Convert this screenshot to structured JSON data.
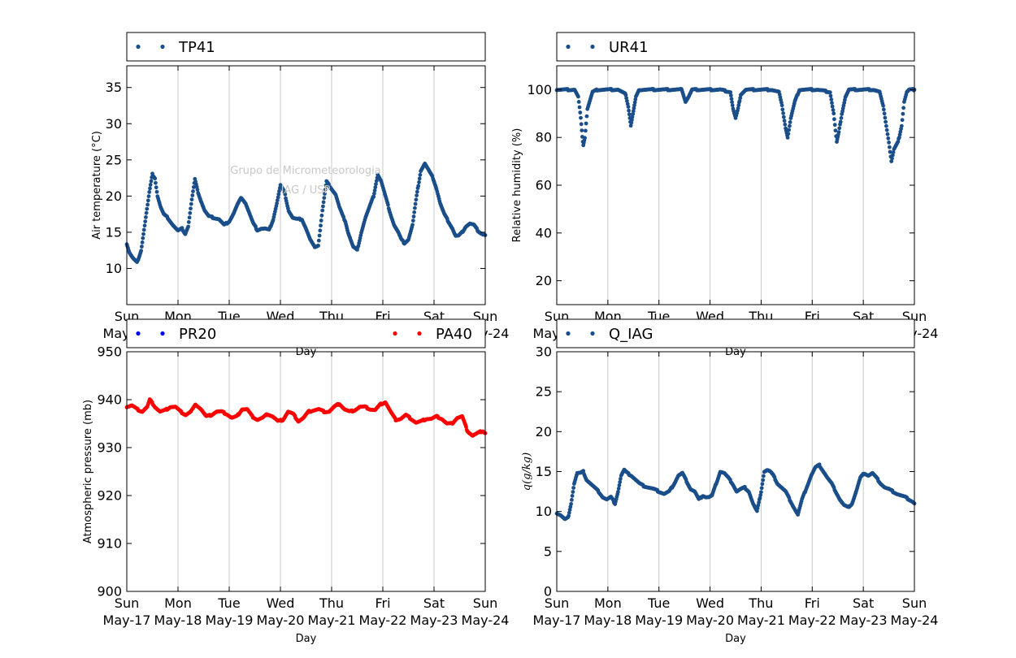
{
  "watermark": {
    "line1": "Grupo de Micrometeorologia",
    "line2": "IAG / USP"
  },
  "x_ticks": [
    {
      "day": "Sun",
      "date": "May-17"
    },
    {
      "day": "Mon",
      "date": "May-18"
    },
    {
      "day": "Tue",
      "date": "May-19"
    },
    {
      "day": "Wed",
      "date": "May-20"
    },
    {
      "day": "Thu",
      "date": "May-21"
    },
    {
      "day": "Fri",
      "date": "May-22"
    },
    {
      "day": "Sat",
      "date": "May-23"
    },
    {
      "day": "Sun",
      "date": "May-24"
    }
  ],
  "xlabel": "Day",
  "colors": {
    "dark_blue": "#1a4e8a",
    "blue": "#0000ff",
    "red": "#ff0000",
    "grid": "#c8c8c8"
  },
  "chart_data": [
    {
      "type": "scatter",
      "title": "",
      "xlabel": "Day",
      "ylabel": "Air temperature (°C)",
      "ylim": [
        5,
        38
      ],
      "yticks": [
        "10",
        "15",
        "20",
        "25",
        "30",
        "35"
      ],
      "xlim": [
        "2015-05-17",
        "2015-05-24"
      ],
      "legend": "top",
      "series": [
        {
          "name": "TP41",
          "color": "#1a4e8a",
          "x": [
            0,
            0.05,
            0.12,
            0.2,
            0.28,
            0.36,
            0.44,
            0.5,
            0.55,
            0.6,
            0.66,
            0.72,
            0.8,
            0.9,
            1.0,
            1.08,
            1.14,
            1.2,
            1.27,
            1.33,
            1.38,
            1.44,
            1.52,
            1.6,
            1.7,
            1.8,
            1.9,
            2.0,
            2.08,
            2.16,
            2.24,
            2.32,
            2.4,
            2.47,
            2.55,
            2.62,
            2.7,
            2.78,
            2.86,
            2.93,
            3.0,
            3.08,
            3.16,
            3.24,
            3.32,
            3.42,
            3.5,
            3.58,
            3.66,
            3.74,
            3.82,
            3.9,
            4.0,
            4.08,
            4.15,
            4.22,
            4.27,
            4.32,
            4.36,
            4.42,
            4.5,
            4.58,
            4.66,
            4.74,
            4.82,
            4.9,
            4.97,
            5.03,
            5.09,
            5.15,
            5.22,
            5.3,
            5.36,
            5.42,
            5.5,
            5.58,
            5.66,
            5.74,
            5.82,
            5.9,
            5.98,
            6.05,
            6.12,
            6.2,
            6.28,
            6.36,
            6.42,
            6.48,
            6.55,
            6.62,
            6.7,
            6.78,
            6.86,
            6.93,
            7.0
          ],
          "y": [
            13.4,
            12.2,
            11.4,
            10.8,
            12.5,
            16.5,
            20.5,
            23.0,
            22.5,
            20.0,
            18.5,
            17.5,
            17.0,
            16.0,
            15.2,
            15.5,
            14.8,
            15.8,
            19.5,
            22.3,
            20.8,
            19.5,
            18.0,
            17.2,
            17.0,
            16.8,
            16.0,
            16.5,
            17.5,
            18.8,
            19.8,
            19.0,
            17.5,
            16.2,
            15.3,
            15.5,
            15.5,
            15.3,
            16.8,
            19.0,
            21.5,
            20.5,
            18.0,
            17.0,
            16.8,
            16.8,
            15.5,
            14.0,
            13.0,
            13.2,
            18.0,
            22.0,
            21.0,
            20.2,
            18.5,
            17.2,
            16.5,
            15.0,
            14.2,
            13.0,
            12.5,
            15.0,
            17.0,
            18.5,
            20.0,
            23.0,
            22.0,
            20.5,
            19.0,
            17.5,
            16.0,
            15.0,
            14.0,
            13.5,
            14.0,
            16.0,
            20.0,
            23.5,
            24.5,
            23.5,
            22.5,
            21.0,
            19.0,
            17.5,
            16.5,
            15.5,
            14.5,
            14.5,
            15.0,
            15.8,
            16.2,
            16.0,
            15.2,
            14.8,
            14.6
          ]
        }
      ]
    },
    {
      "type": "scatter",
      "title": "",
      "xlabel": "Day",
      "ylabel": "Relative humidity (%)",
      "ylim": [
        10,
        110
      ],
      "yticks": [
        "20",
        "40",
        "60",
        "80",
        "100"
      ],
      "xlim": [
        "2015-05-17",
        "2015-05-24"
      ],
      "legend": "top",
      "series": [
        {
          "name": "UR41",
          "color": "#1a4e8a",
          "x": [
            0,
            0.2,
            0.35,
            0.42,
            0.47,
            0.5,
            0.52,
            0.55,
            0.6,
            0.7,
            0.8,
            1.0,
            1.2,
            1.35,
            1.4,
            1.45,
            1.5,
            1.55,
            1.62,
            1.8,
            2.2,
            2.45,
            2.52,
            2.58,
            2.65,
            2.8,
            3.2,
            3.4,
            3.45,
            3.5,
            3.55,
            3.6,
            3.7,
            4.2,
            4.35,
            4.42,
            4.48,
            4.52,
            4.58,
            4.66,
            4.75,
            5.1,
            5.35,
            5.42,
            5.48,
            5.52,
            5.58,
            5.65,
            5.72,
            5.8,
            6.2,
            6.32,
            6.4,
            6.45,
            6.5,
            6.55,
            6.6,
            6.68,
            6.75,
            6.8,
            6.85,
            6.9,
            7.0
          ],
          "y": [
            100,
            100,
            100,
            97,
            88,
            80,
            77,
            80,
            92,
            99,
            100,
            100,
            100,
            98,
            93,
            85,
            91,
            97,
            100,
            100,
            100,
            100,
            95,
            97,
            100,
            100,
            100,
            99,
            92,
            88,
            92,
            98,
            100,
            100,
            99,
            92,
            84,
            80,
            88,
            95,
            100,
            100,
            99,
            90,
            78,
            82,
            90,
            97,
            100,
            100,
            100,
            99,
            92,
            85,
            78,
            70,
            75,
            78,
            85,
            95,
            99,
            100,
            100
          ]
        }
      ]
    },
    {
      "type": "scatter",
      "title": "",
      "xlabel": "Day",
      "ylabel": "Atmospheric pressure (mb)",
      "ylim": [
        900,
        950
      ],
      "yticks": [
        "900",
        "910",
        "920",
        "930",
        "940",
        "950"
      ],
      "xlim": [
        "2015-05-17",
        "2015-05-24"
      ],
      "legend": "top",
      "series": [
        {
          "name": "PR20",
          "color": "#0000ff",
          "x": [],
          "y": []
        },
        {
          "name": "PA40",
          "color": "#ff0000",
          "x": [
            0,
            0.1,
            0.2,
            0.3,
            0.4,
            0.45,
            0.55,
            0.65,
            0.75,
            0.85,
            0.95,
            1.05,
            1.15,
            1.25,
            1.35,
            1.45,
            1.55,
            1.65,
            1.75,
            1.85,
            1.95,
            2.05,
            2.15,
            2.25,
            2.35,
            2.45,
            2.55,
            2.65,
            2.75,
            2.85,
            2.95,
            3.05,
            3.15,
            3.25,
            3.35,
            3.45,
            3.55,
            3.65,
            3.75,
            3.85,
            3.95,
            4.05,
            4.15,
            4.25,
            4.35,
            4.45,
            4.55,
            4.65,
            4.75,
            4.85,
            4.95,
            5.05,
            5.15,
            5.25,
            5.35,
            5.45,
            5.55,
            5.65,
            5.75,
            5.85,
            5.95,
            6.05,
            6.15,
            6.25,
            6.35,
            6.45,
            6.55,
            6.65,
            6.75,
            6.85,
            6.95,
            7.0
          ],
          "y": [
            938.5,
            938.8,
            938.0,
            937.5,
            938.5,
            940.0,
            938.5,
            937.5,
            937.8,
            938.5,
            938.5,
            937.5,
            936.8,
            937.5,
            939.0,
            938.0,
            936.5,
            936.8,
            937.5,
            937.5,
            937.0,
            936.2,
            936.5,
            938.0,
            938.0,
            936.5,
            935.8,
            936.2,
            937.0,
            936.5,
            935.5,
            935.8,
            937.5,
            937.0,
            935.5,
            936.2,
            937.5,
            937.8,
            938.0,
            937.5,
            937.5,
            938.5,
            939.2,
            938.0,
            937.5,
            937.8,
            938.5,
            938.5,
            938.0,
            937.8,
            939.0,
            939.5,
            937.5,
            935.8,
            936.0,
            936.8,
            936.0,
            935.2,
            935.5,
            936.0,
            936.0,
            936.5,
            936.0,
            935.0,
            935.0,
            936.2,
            936.5,
            933.5,
            932.5,
            933.0,
            933.5,
            933.0
          ]
        }
      ]
    },
    {
      "type": "scatter",
      "title": "",
      "xlabel": "Day",
      "ylabel": "q(g/kg)",
      "ylim": [
        0,
        30
      ],
      "yticks": [
        "0",
        "5",
        "10",
        "15",
        "20",
        "25",
        "30"
      ],
      "xlim": [
        "2015-05-17",
        "2015-05-24"
      ],
      "legend": "top",
      "series": [
        {
          "name": "Q_IAG",
          "color": "#1a4e8a",
          "x": [
            0,
            0.08,
            0.16,
            0.22,
            0.28,
            0.34,
            0.4,
            0.46,
            0.52,
            0.58,
            0.66,
            0.74,
            0.82,
            0.9,
            0.98,
            1.06,
            1.14,
            1.2,
            1.26,
            1.32,
            1.38,
            1.46,
            1.54,
            1.62,
            1.7,
            1.8,
            1.9,
            2.0,
            2.1,
            2.2,
            2.3,
            2.38,
            2.46,
            2.54,
            2.62,
            2.7,
            2.78,
            2.86,
            2.92,
            2.98,
            3.04,
            3.12,
            3.2,
            3.28,
            3.36,
            3.44,
            3.52,
            3.6,
            3.68,
            3.76,
            3.84,
            3.92,
            4.0,
            4.06,
            4.12,
            4.18,
            4.24,
            4.32,
            4.4,
            4.48,
            4.56,
            4.64,
            4.72,
            4.8,
            4.86,
            4.92,
            4.98,
            5.06,
            5.14,
            5.22,
            5.3,
            5.38,
            5.46,
            5.54,
            5.62,
            5.7,
            5.78,
            5.86,
            5.94,
            6.02,
            6.1,
            6.18,
            6.26,
            6.34,
            6.42,
            6.5,
            6.58,
            6.66,
            6.74,
            6.82,
            6.9,
            6.97,
            7.0
          ],
          "y": [
            9.8,
            9.5,
            9.0,
            9.2,
            11.0,
            13.5,
            14.8,
            14.8,
            15.0,
            14.0,
            13.5,
            13.0,
            12.5,
            11.8,
            11.5,
            11.8,
            11.0,
            12.5,
            14.5,
            15.2,
            14.8,
            14.5,
            14.0,
            13.5,
            13.2,
            13.0,
            12.8,
            12.5,
            12.2,
            12.5,
            13.5,
            14.5,
            14.8,
            13.8,
            12.8,
            12.5,
            11.5,
            12.0,
            11.8,
            11.8,
            12.0,
            13.5,
            15.0,
            14.8,
            14.2,
            13.5,
            12.5,
            12.8,
            13.0,
            12.5,
            11.0,
            10.0,
            12.5,
            15.0,
            15.2,
            15.0,
            14.5,
            13.5,
            13.0,
            12.5,
            11.5,
            10.5,
            9.6,
            11.5,
            12.5,
            13.5,
            14.5,
            15.5,
            15.8,
            15.0,
            14.2,
            13.5,
            12.5,
            11.5,
            10.8,
            10.5,
            11.0,
            12.5,
            14.2,
            14.8,
            14.5,
            14.8,
            14.2,
            13.5,
            13.0,
            12.8,
            12.5,
            12.2,
            12.0,
            11.8,
            11.5,
            11.2,
            11.0
          ]
        }
      ]
    }
  ]
}
